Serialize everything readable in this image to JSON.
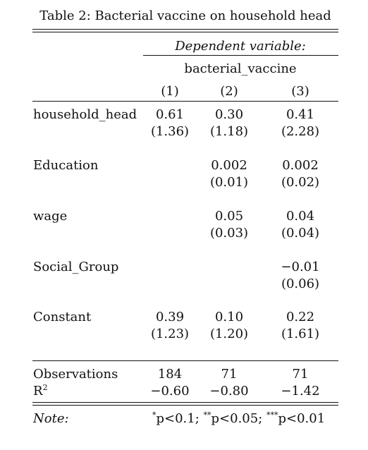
{
  "caption": "Table 2: Bacterial vaccine on household head",
  "header": {
    "dep_var_label": "Dependent variable:",
    "dep_var_name": "bacterial_vaccine",
    "columns": [
      "(1)",
      "(2)",
      "(3)"
    ]
  },
  "rows": [
    {
      "label": "household_head",
      "coef": [
        "0.61",
        "0.30",
        "0.41"
      ],
      "se": [
        "(1.36)",
        "(1.18)",
        "(2.28)"
      ]
    },
    {
      "label": "Education",
      "coef": [
        "",
        "0.002",
        "0.002"
      ],
      "se": [
        "",
        "(0.01)",
        "(0.02)"
      ]
    },
    {
      "label": "wage",
      "coef": [
        "",
        "0.05",
        "0.04"
      ],
      "se": [
        "",
        "(0.03)",
        "(0.04)"
      ]
    },
    {
      "label": "Social_Group",
      "coef": [
        "",
        "",
        "−0.01"
      ],
      "se": [
        "",
        "",
        "(0.06)"
      ]
    },
    {
      "label": "Constant",
      "coef": [
        "0.39",
        "0.10",
        "0.22"
      ],
      "se": [
        "(1.23)",
        "(1.20)",
        "(1.61)"
      ]
    }
  ],
  "stats": [
    {
      "label": "Observations",
      "values": [
        "184",
        "71",
        "71"
      ]
    },
    {
      "label": "R",
      "label_sup": "2",
      "values": [
        "−0.60",
        "−0.80",
        "−1.42"
      ]
    }
  ],
  "note": {
    "label": "Note:",
    "stars": [
      "*",
      "**",
      "***"
    ],
    "thresholds": [
      "p<0.1; ",
      "p<0.05; ",
      "p<0.01"
    ]
  }
}
